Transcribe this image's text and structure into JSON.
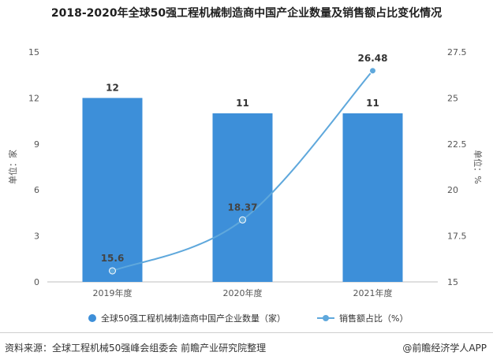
{
  "title": "2018-2020年全球50强工程机械制造商中国产企业数量及销售额占比变化情况",
  "footer": {
    "source": "资料来源：全球工程机械50强峰会组委会 前瞻产业研究院整理",
    "credit": "@前瞻经济学人APP"
  },
  "chart_data": {
    "type": "bar+line",
    "categories": [
      "2019年度",
      "2020年度",
      "2021年度"
    ],
    "left_axis": {
      "label": "单位：家",
      "min": 0,
      "max": 15,
      "ticks": [
        0,
        3,
        6,
        9,
        12,
        15
      ]
    },
    "right_axis": {
      "label": "单位：%",
      "min": 15,
      "max": 27.5,
      "ticks": [
        15,
        17.5,
        20,
        22.5,
        25,
        27.5
      ]
    },
    "series": [
      {
        "name": "全球50强工程机械制造商中国产企业数量（家）",
        "type": "bar",
        "axis": "left",
        "values": [
          12,
          11,
          11
        ],
        "labels": [
          "12",
          "11",
          "11"
        ]
      },
      {
        "name": "销售额占比（%）",
        "type": "line",
        "axis": "right",
        "values": [
          15.6,
          18.37,
          26.48
        ],
        "labels": [
          "15.6",
          "18.37",
          "26.48"
        ]
      }
    ],
    "colors": {
      "bar": "#3d8fd9",
      "line": "#5fa8dc",
      "text": "#555555"
    },
    "legend": "bottom"
  }
}
